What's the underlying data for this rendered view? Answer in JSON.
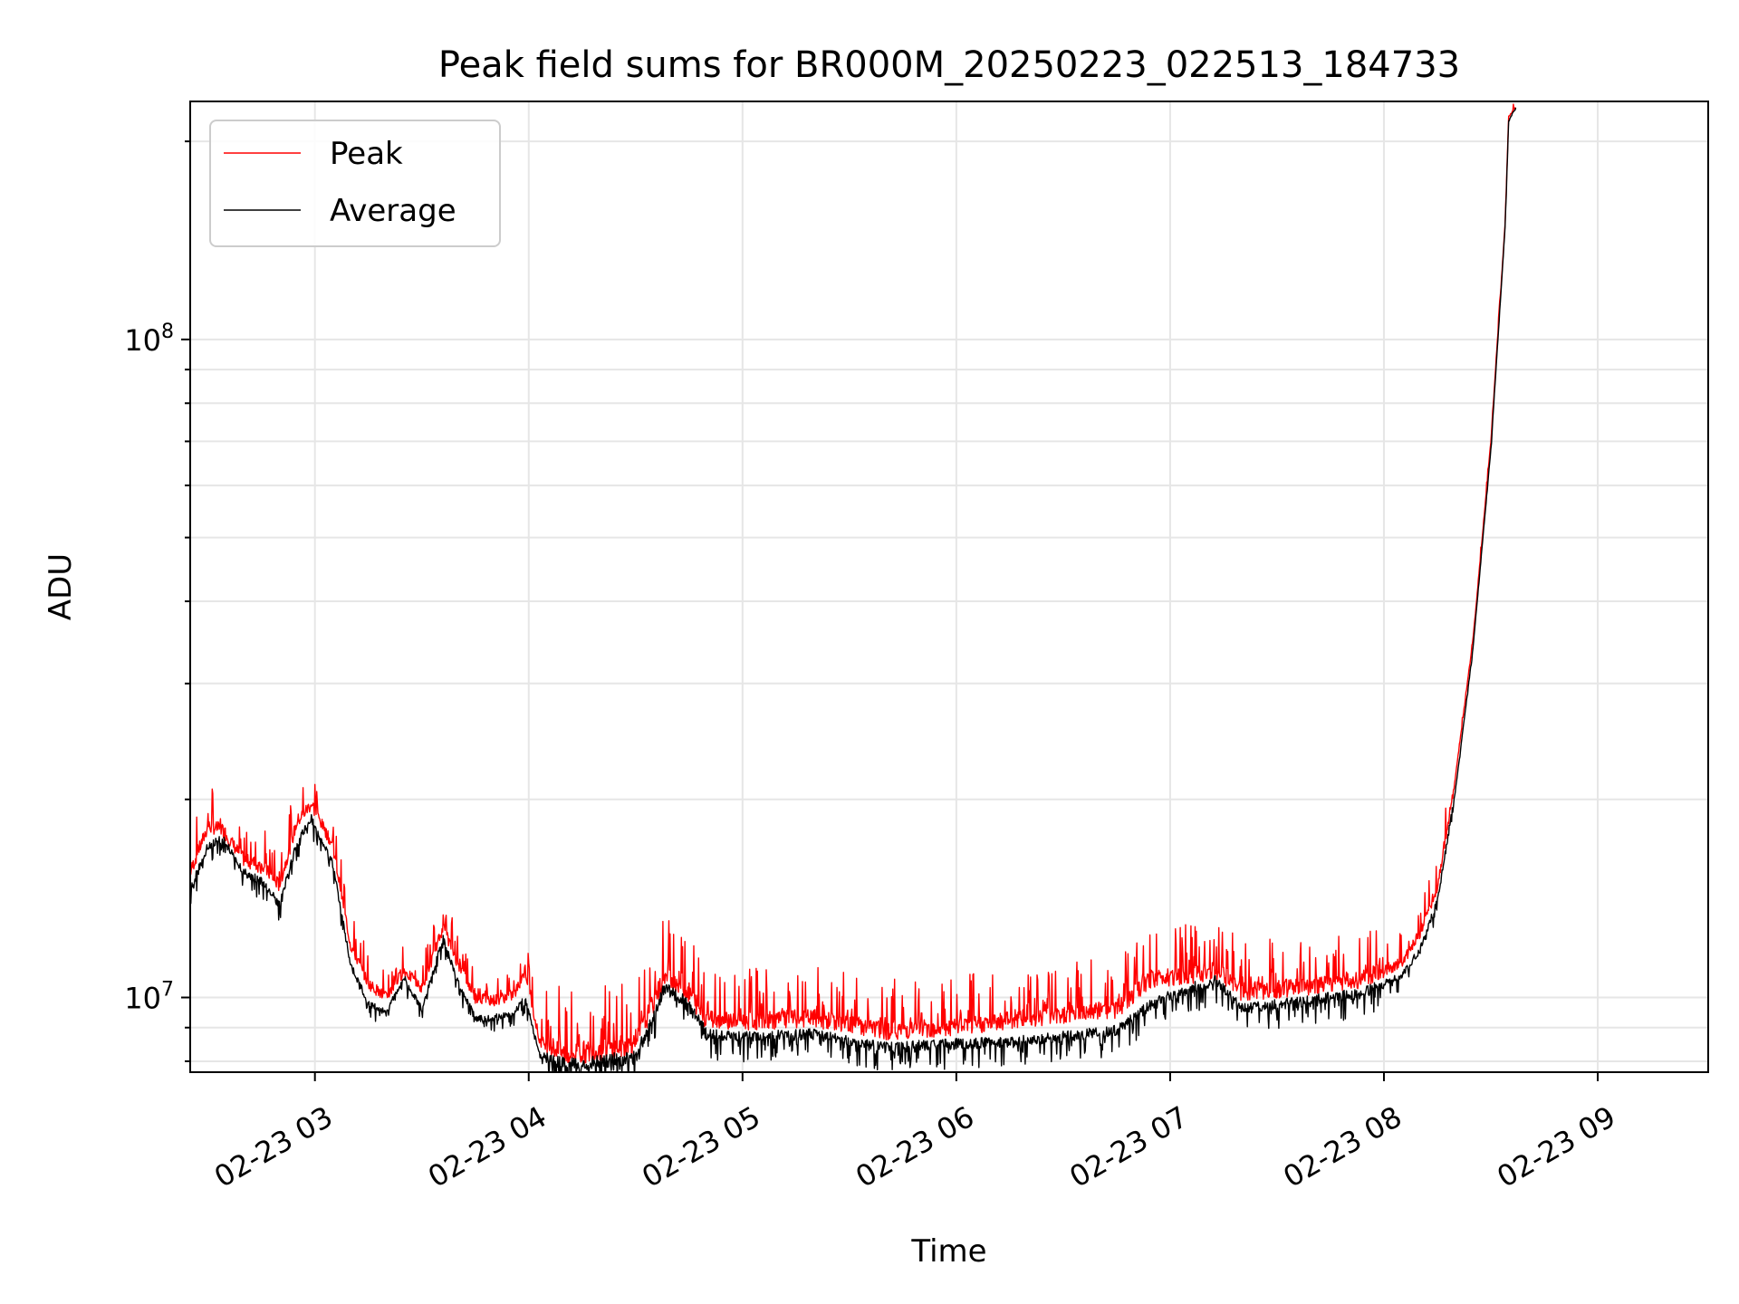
{
  "chart_data": {
    "type": "line",
    "title": "Peak field sums for BR000M_20250223_022513_184733",
    "xlabel": "Time",
    "ylabel": "ADU",
    "y_scale": "log",
    "xlim": [
      "2025-02-23 02:25",
      "2025-02-23 09:31"
    ],
    "ylim": [
      7700000,
      230000000
    ],
    "grid": true,
    "legend_position": "top-left",
    "x_ticks": [
      "02-23 03",
      "02-23 04",
      "02-23 05",
      "02-23 06",
      "02-23 07",
      "02-23 08",
      "02-23 09"
    ],
    "y_ticks": [
      {
        "label_base": "10",
        "label_exp": "7",
        "value": 10000000
      },
      {
        "label_base": "10",
        "label_exp": "8",
        "value": 100000000
      }
    ],
    "series": [
      {
        "name": "Peak",
        "color": "#ff0000",
        "x": [
          "2025-02-23 02:25",
          "2025-02-23 02:30",
          "2025-02-23 02:34",
          "2025-02-23 02:40",
          "2025-02-23 02:46",
          "2025-02-23 02:50",
          "2025-02-23 02:55",
          "2025-02-23 02:59",
          "2025-02-23 03:05",
          "2025-02-23 03:10",
          "2025-02-23 03:15",
          "2025-02-23 03:20",
          "2025-02-23 03:25",
          "2025-02-23 03:30",
          "2025-02-23 03:36",
          "2025-02-23 03:40",
          "2025-02-23 03:45",
          "2025-02-23 03:50",
          "2025-02-23 03:56",
          "2025-02-23 03:59",
          "2025-02-23 04:03",
          "2025-02-23 04:10",
          "2025-02-23 04:20",
          "2025-02-23 04:30",
          "2025-02-23 04:38",
          "2025-02-23 04:43",
          "2025-02-23 04:50",
          "2025-02-23 05:00",
          "2025-02-23 05:20",
          "2025-02-23 05:40",
          "2025-02-23 06:00",
          "2025-02-23 06:20",
          "2025-02-23 06:45",
          "2025-02-23 06:55",
          "2025-02-23 07:05",
          "2025-02-23 07:13",
          "2025-02-23 07:20",
          "2025-02-23 07:40",
          "2025-02-23 07:55",
          "2025-02-23 08:05",
          "2025-02-23 08:10",
          "2025-02-23 08:15",
          "2025-02-23 08:20",
          "2025-02-23 08:25",
          "2025-02-23 08:30",
          "2025-02-23 08:34",
          "2025-02-23 08:35",
          "2025-02-23 08:37"
        ],
        "values": [
          15500000,
          18200000,
          18000000,
          16200000,
          15700000,
          14800000,
          18500000,
          19700000,
          17000000,
          12000000,
          10500000,
          10000000,
          11000000,
          10300000,
          12800000,
          11300000,
          10000000,
          9900000,
          10100000,
          11000000,
          8600000,
          8200000,
          8300000,
          8500000,
          10700000,
          10500000,
          9300000,
          9200000,
          9300000,
          8900000,
          9000000,
          9300000,
          9600000,
          10700000,
          10800000,
          11000000,
          10200000,
          10400000,
          10700000,
          11300000,
          12500000,
          14700000,
          21500000,
          35000000,
          70000000,
          150000000,
          218000000,
          225000000
        ]
      },
      {
        "name": "Average",
        "color": "#000000",
        "x": [
          "2025-02-23 02:25",
          "2025-02-23 02:30",
          "2025-02-23 02:34",
          "2025-02-23 02:40",
          "2025-02-23 02:46",
          "2025-02-23 02:50",
          "2025-02-23 02:55",
          "2025-02-23 02:59",
          "2025-02-23 03:05",
          "2025-02-23 03:10",
          "2025-02-23 03:15",
          "2025-02-23 03:20",
          "2025-02-23 03:25",
          "2025-02-23 03:30",
          "2025-02-23 03:36",
          "2025-02-23 03:40",
          "2025-02-23 03:45",
          "2025-02-23 03:50",
          "2025-02-23 03:56",
          "2025-02-23 03:59",
          "2025-02-23 04:03",
          "2025-02-23 04:10",
          "2025-02-23 04:20",
          "2025-02-23 04:30",
          "2025-02-23 04:38",
          "2025-02-23 04:43",
          "2025-02-23 04:50",
          "2025-02-23 05:00",
          "2025-02-23 05:20",
          "2025-02-23 05:40",
          "2025-02-23 06:00",
          "2025-02-23 06:20",
          "2025-02-23 06:45",
          "2025-02-23 06:55",
          "2025-02-23 07:05",
          "2025-02-23 07:13",
          "2025-02-23 07:20",
          "2025-02-23 07:40",
          "2025-02-23 07:55",
          "2025-02-23 08:05",
          "2025-02-23 08:10",
          "2025-02-23 08:15",
          "2025-02-23 08:20",
          "2025-02-23 08:25",
          "2025-02-23 08:30",
          "2025-02-23 08:34",
          "2025-02-23 08:35",
          "2025-02-23 08:37"
        ],
        "values": [
          14600000,
          17000000,
          17500000,
          15500000,
          14900000,
          13800000,
          17200000,
          18700000,
          16000000,
          11200000,
          9800000,
          9500000,
          10700000,
          9600000,
          12300000,
          10600000,
          9300000,
          9300000,
          9500000,
          10000000,
          8200000,
          7900000,
          8000000,
          8100000,
          10300000,
          10000000,
          8800000,
          8700000,
          8800000,
          8400000,
          8500000,
          8600000,
          8900000,
          9800000,
          10300000,
          10600000,
          9600000,
          9900000,
          10200000,
          10800000,
          11800000,
          14000000,
          20500000,
          34000000,
          68000000,
          148000000,
          215000000,
          225000000
        ]
      }
    ]
  }
}
